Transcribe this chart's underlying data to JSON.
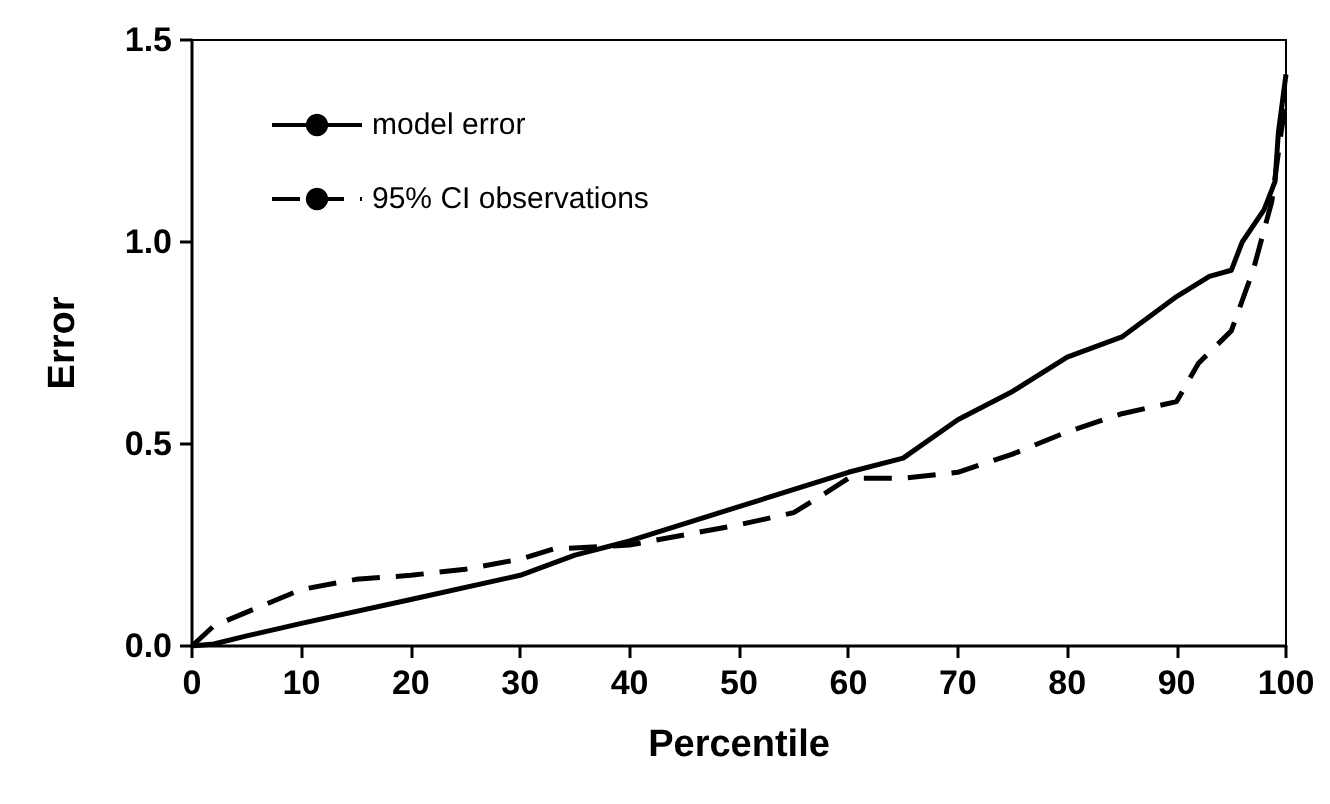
{
  "chart_data": {
    "type": "line",
    "xlabel": "Percentile",
    "ylabel": "Error",
    "xlim": [
      0,
      100
    ],
    "xticks": [
      0,
      10,
      20,
      30,
      40,
      50,
      60,
      70,
      80,
      90,
      100
    ],
    "ylim": [
      0,
      1.5
    ],
    "yticks": [
      {
        "value": 0,
        "label": "0.0"
      },
      {
        "value": 0.5,
        "label": "0.5"
      },
      {
        "value": 1,
        "label": "1.0"
      },
      {
        "value": 1.5,
        "label": "1.5"
      }
    ],
    "grid": false,
    "legend": "top left",
    "marker": "none",
    "series": [
      {
        "name": "model error",
        "color": "#000000",
        "line_style": "solid",
        "x": [
          0,
          2,
          5,
          10,
          20,
          30,
          35,
          40,
          50,
          60,
          65,
          70,
          75,
          80,
          85,
          90,
          93,
          95,
          96,
          98,
          99,
          99.3,
          100
        ],
        "values": [
          0,
          0.005,
          0.025,
          0.056,
          0.115,
          0.175,
          0.225,
          0.26,
          0.345,
          0.43,
          0.465,
          0.56,
          0.63,
          0.715,
          0.765,
          0.865,
          0.915,
          0.93,
          1.0,
          1.08,
          1.15,
          1.27,
          1.415
        ]
      },
      {
        "name": "95% CI observations",
        "color": "#000000",
        "line_style": "dashed",
        "x": [
          0,
          2,
          10,
          15,
          20,
          25,
          30,
          33,
          40,
          50,
          55,
          58,
          60,
          65,
          70,
          75,
          80,
          85,
          90,
          92,
          95,
          97,
          98.7,
          99.6,
          100
        ],
        "values": [
          0,
          0.05,
          0.14,
          0.165,
          0.175,
          0.19,
          0.215,
          0.24,
          0.25,
          0.3,
          0.33,
          0.38,
          0.415,
          0.415,
          0.43,
          0.475,
          0.53,
          0.575,
          0.605,
          0.7,
          0.78,
          0.93,
          1.1,
          1.28,
          1.35
        ]
      }
    ]
  }
}
